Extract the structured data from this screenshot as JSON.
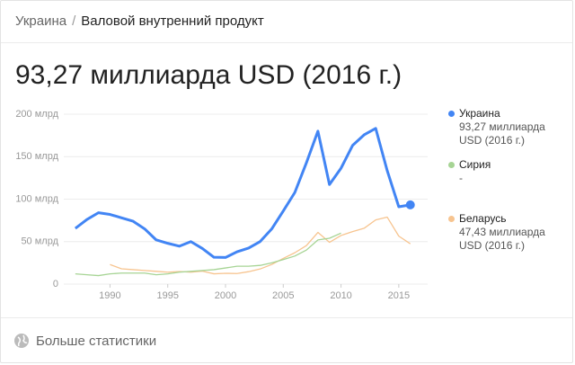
{
  "breadcrumb": {
    "parent": "Украина",
    "separator": "/",
    "current": "Валовой внутренний продукт"
  },
  "headline": "93,27 миллиарда USD (2016 г.)",
  "footer": {
    "link": "Больше статистики"
  },
  "chart_data": {
    "type": "line",
    "x": [
      1987,
      1988,
      1989,
      1990,
      1991,
      1992,
      1993,
      1994,
      1995,
      1996,
      1997,
      1998,
      1999,
      2000,
      2001,
      2002,
      2003,
      2004,
      2005,
      2006,
      2007,
      2008,
      2009,
      2010,
      2011,
      2012,
      2013,
      2014,
      2015,
      2016
    ],
    "series": [
      {
        "name": "Украина",
        "color": "#4285f4",
        "legend_text": "93,27 миллиарда USD (2016 г.)",
        "values": [
          65.6,
          76,
          84,
          82,
          78,
          74,
          65,
          52,
          48,
          44.6,
          50,
          41.9,
          31.6,
          31.3,
          38,
          42.4,
          50.1,
          64.9,
          86.1,
          107.8,
          142.7,
          180,
          117.2,
          136.4,
          163.2,
          175.7,
          183.3,
          133.5,
          91,
          93.27
        ]
      },
      {
        "name": "Сирия",
        "color": "#a6d494",
        "legend_text": "-",
        "values": [
          12,
          11,
          10,
          12,
          13,
          13,
          13,
          11,
          12,
          14,
          15,
          16,
          17,
          19,
          21,
          21,
          22,
          25,
          28.9,
          33,
          40,
          52,
          54,
          60,
          null,
          null,
          null,
          null,
          null,
          null
        ]
      },
      {
        "name": "Беларусь",
        "color": "#f7c48f",
        "legend_text": "47,43 миллиарда USD (2016 г.)",
        "values": [
          null,
          null,
          null,
          23,
          18,
          17,
          16,
          15,
          14,
          14.8,
          14.1,
          15.2,
          12.1,
          12.7,
          12.4,
          14.6,
          17.8,
          23.1,
          30.2,
          36.9,
          45.3,
          60.8,
          49.2,
          57.2,
          61.8,
          65.7,
          75.5,
          78.8,
          56.5,
          47.43
        ]
      }
    ],
    "xlim": [
      1986,
      2017.5
    ],
    "xticks": [
      1990,
      1995,
      2000,
      2005,
      2010,
      2015
    ],
    "ylim": [
      0,
      200
    ],
    "yticks": [
      0,
      {
        "value": 50,
        "label": "50 млрд"
      },
      {
        "value": 100,
        "label": "100 млрд"
      },
      {
        "value": 150,
        "label": "150 млрд"
      },
      {
        "value": 200,
        "label": "200 млрд"
      }
    ],
    "grid": true
  }
}
